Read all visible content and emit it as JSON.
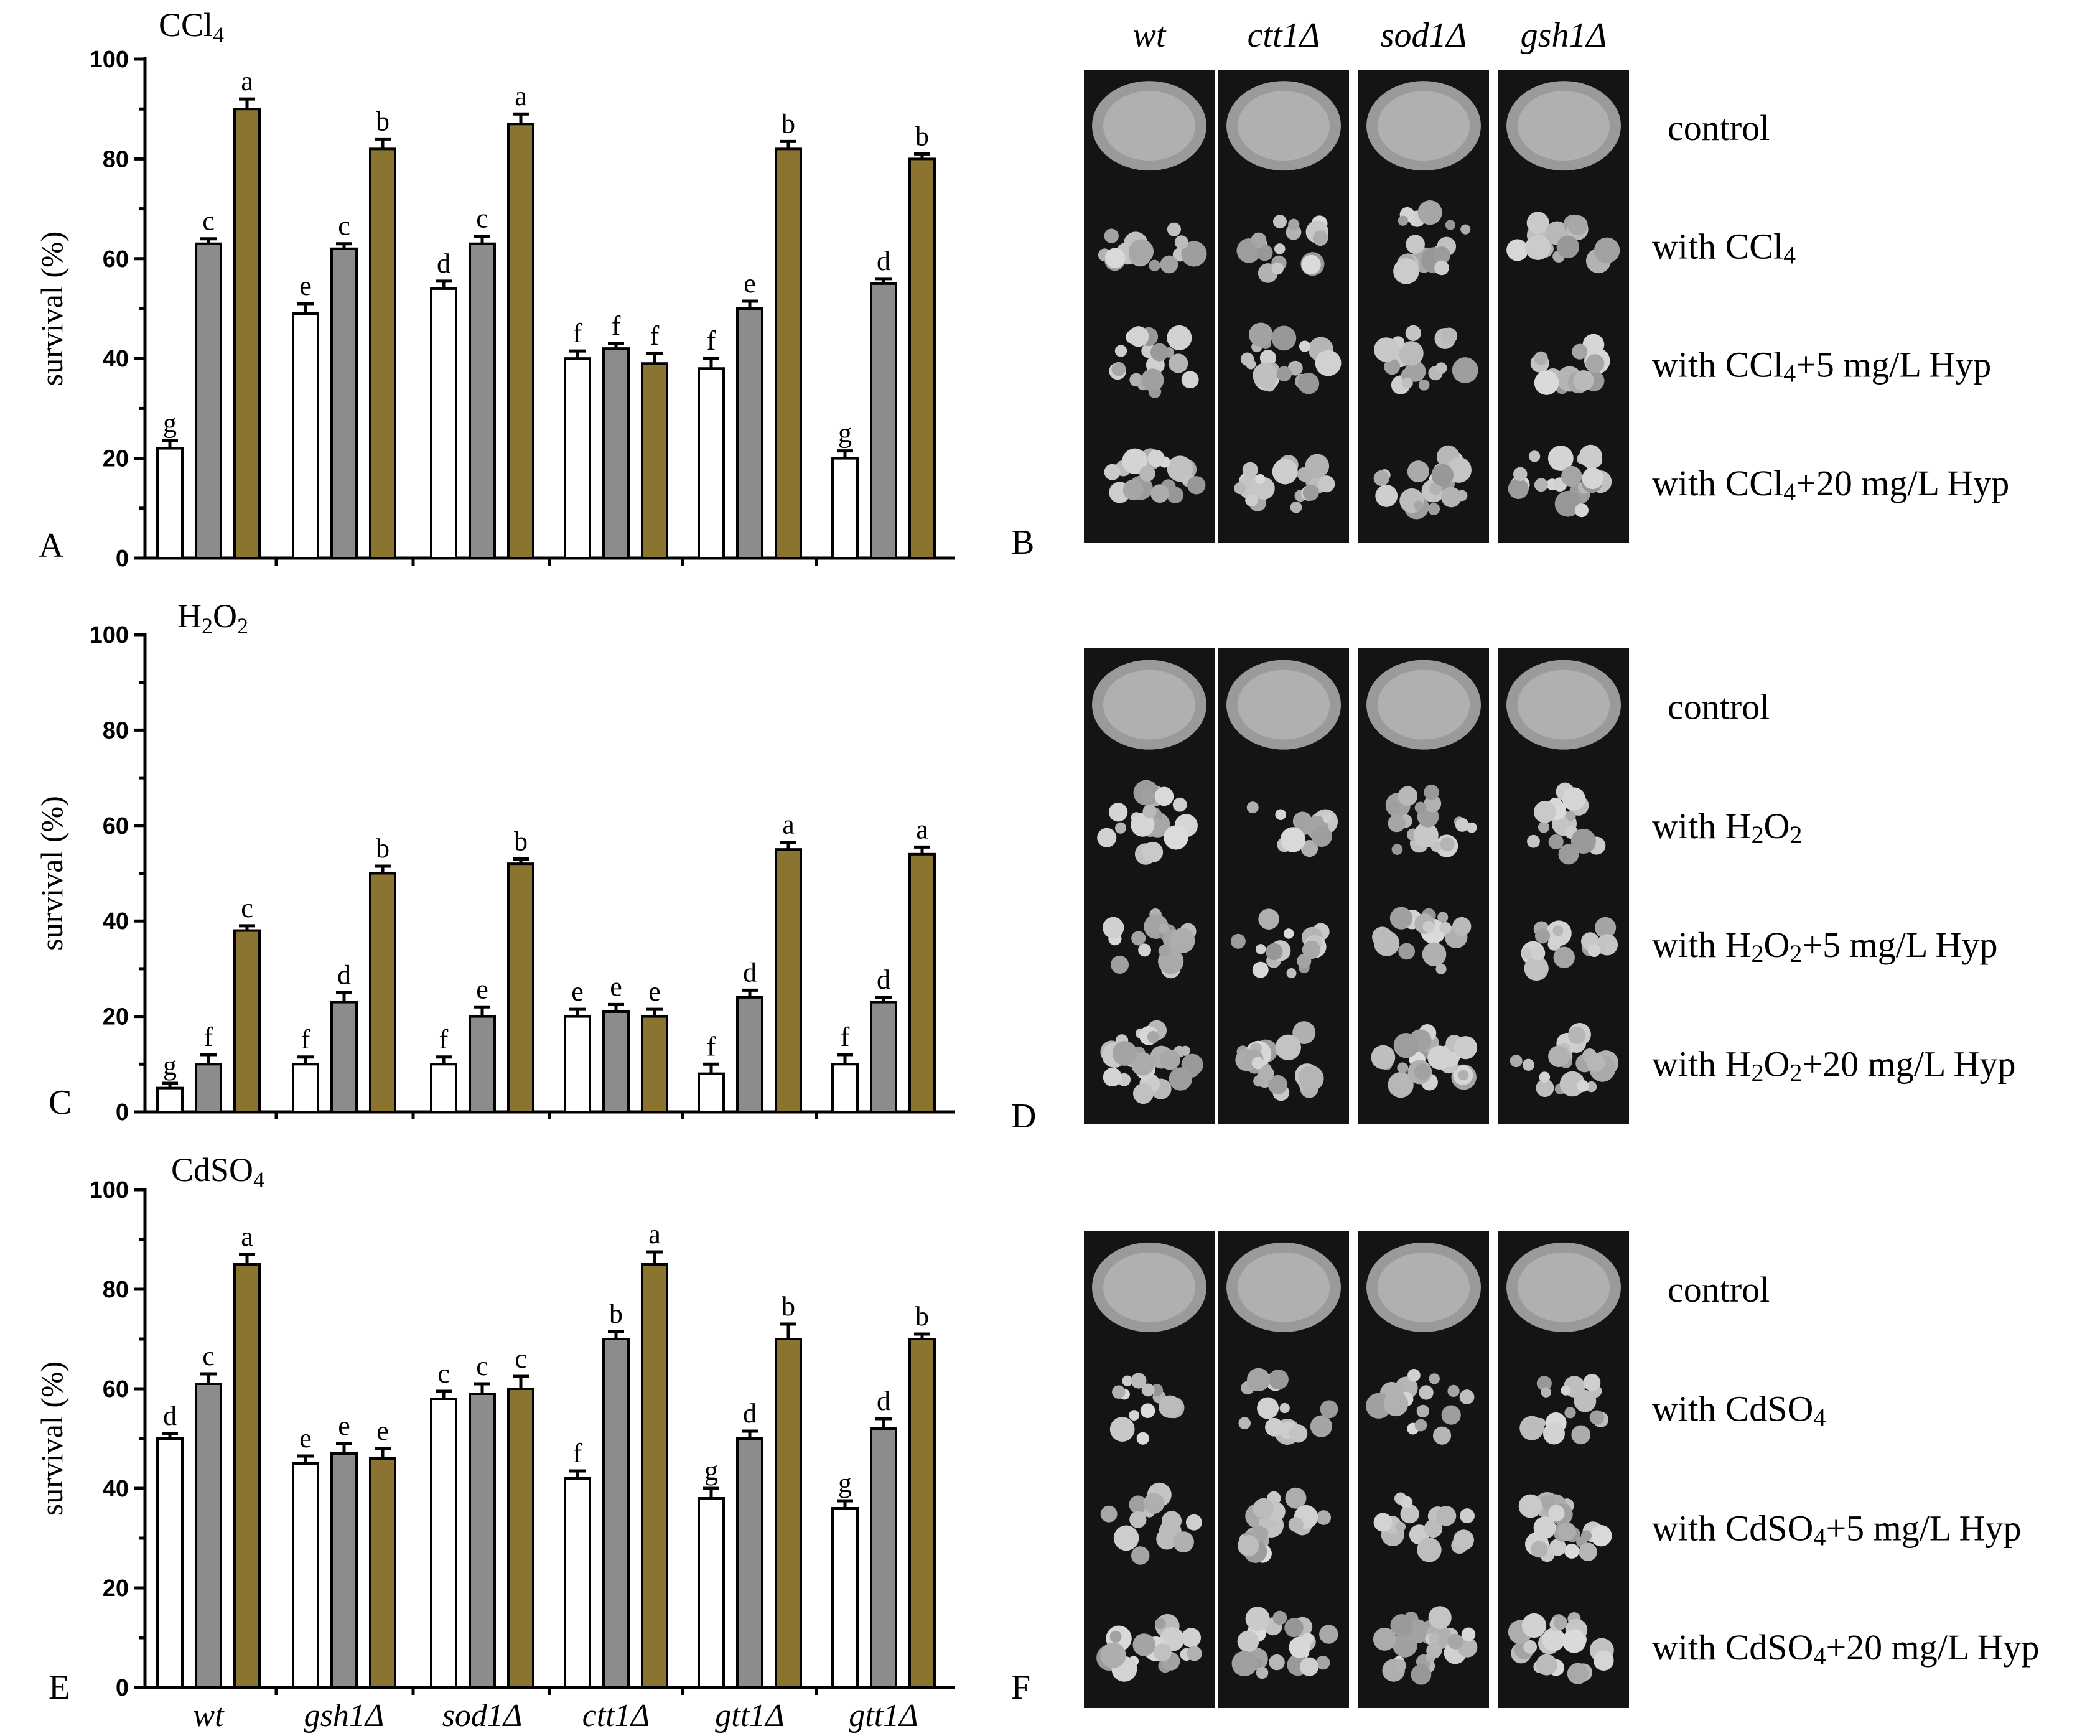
{
  "chart_data": [
    {
      "type": "bar",
      "panel_letter": "A",
      "title_text": "CCl",
      "title_sub": "4",
      "ylabel": "survival (%)",
      "ylim": [
        0,
        100
      ],
      "yticks": [
        0,
        20,
        40,
        60,
        80,
        100
      ],
      "categories": [
        "",
        "",
        "",
        "",
        "",
        ""
      ],
      "series": [
        {
          "color": "#ffffff",
          "values": [
            22,
            49,
            54,
            40,
            38,
            20
          ],
          "errors": [
            1.5,
            2,
            1.5,
            1.5,
            2,
            1.5
          ],
          "letters": [
            "g",
            "e",
            "d",
            "f",
            "f",
            "g"
          ]
        },
        {
          "color": "#8c8c8c",
          "values": [
            63,
            62,
            63,
            42,
            50,
            55
          ],
          "errors": [
            1,
            1,
            1.5,
            1,
            1.5,
            1
          ],
          "letters": [
            "c",
            "c",
            "c",
            "f",
            "e",
            "d"
          ]
        },
        {
          "color": "#8b7430",
          "values": [
            90,
            82,
            87,
            39,
            82,
            80
          ],
          "errors": [
            2,
            2,
            2,
            2,
            1.5,
            1
          ],
          "letters": [
            "a",
            "b",
            "a",
            "f",
            "b",
            "b"
          ]
        }
      ]
    },
    {
      "type": "bar",
      "panel_letter": "C",
      "title_text": "H",
      "title_sub": "2",
      "title_text2": "O",
      "title_sub2": "2",
      "ylabel": "survival  (%)",
      "ylim": [
        0,
        100
      ],
      "yticks": [
        0,
        20,
        40,
        60,
        80,
        100
      ],
      "categories": [
        "",
        "",
        "",
        "",
        "",
        ""
      ],
      "series": [
        {
          "color": "#ffffff",
          "values": [
            5,
            10,
            10,
            20,
            8,
            10
          ],
          "errors": [
            1,
            1.5,
            1.5,
            1.5,
            2,
            2
          ],
          "letters": [
            "g",
            "f",
            "f",
            "e",
            "f",
            "f"
          ]
        },
        {
          "color": "#8c8c8c",
          "values": [
            10,
            23,
            20,
            21,
            24,
            23
          ],
          "errors": [
            2,
            2,
            2,
            1.5,
            1.5,
            1
          ],
          "letters": [
            "f",
            "d",
            "e",
            "e",
            "d",
            "d"
          ]
        },
        {
          "color": "#8b7430",
          "values": [
            38,
            50,
            52,
            20,
            55,
            54
          ],
          "errors": [
            1,
            1.5,
            1,
            1.5,
            1.5,
            1.5
          ],
          "letters": [
            "c",
            "b",
            "b",
            "e",
            "a",
            "a"
          ]
        }
      ]
    },
    {
      "type": "bar",
      "panel_letter": "E",
      "title_text": "CdSO",
      "title_sub": "4",
      "ylabel": "survival (%)",
      "ylim": [
        0,
        100
      ],
      "yticks": [
        0,
        20,
        40,
        60,
        80,
        100
      ],
      "categories": [
        "wt",
        "gsh1Δ",
        "sod1Δ",
        "ctt1Δ",
        "gtt1Δ",
        "gtt1Δ"
      ],
      "series": [
        {
          "color": "#ffffff",
          "values": [
            50,
            45,
            58,
            42,
            38,
            36
          ],
          "errors": [
            1,
            1.5,
            1.5,
            1.5,
            2,
            1.5
          ],
          "letters": [
            "d",
            "e",
            "c",
            "f",
            "g",
            "g"
          ]
        },
        {
          "color": "#8c8c8c",
          "values": [
            61,
            47,
            59,
            70,
            50,
            52
          ],
          "errors": [
            2,
            2,
            2,
            1.5,
            1.5,
            2
          ],
          "letters": [
            "c",
            "e",
            "c",
            "b",
            "d",
            "d"
          ]
        },
        {
          "color": "#8b7430",
          "values": [
            85,
            46,
            60,
            85,
            70,
            70
          ],
          "errors": [
            2,
            2,
            2.5,
            2.5,
            3,
            1
          ],
          "letters": [
            "a",
            "e",
            "c",
            "a",
            "b",
            "b"
          ]
        }
      ]
    }
  ],
  "plates": {
    "strains": [
      "wt",
      "ctt1Δ",
      "sod1Δ",
      "gsh1Δ"
    ],
    "panels": [
      {
        "letter": "B",
        "conditions": [
          {
            "pre": "control",
            "sub": "",
            "post": ""
          },
          {
            "pre": "with CCl",
            "sub": "4",
            "post": ""
          },
          {
            "pre": "with CCl",
            "sub": "4",
            "post": "+5 mg/L Hyp"
          },
          {
            "pre": "with CCl",
            "sub": "4",
            "post": "+20 mg/L Hyp"
          }
        ]
      },
      {
        "letter": "D",
        "conditions": [
          {
            "pre": "control",
            "sub": "",
            "post": ""
          },
          {
            "pre": "with H",
            "sub": "2",
            "post": "O",
            "sub2": "2",
            "post2": ""
          },
          {
            "pre": "with H",
            "sub": "2",
            "post": "O",
            "sub2": "2",
            "post2": "+5 mg/L Hyp"
          },
          {
            "pre": "with H",
            "sub": "2",
            "post": "O",
            "sub2": "2",
            "post2": "+20 mg/L Hyp"
          }
        ]
      },
      {
        "letter": "F",
        "conditions": [
          {
            "pre": "control",
            "sub": "",
            "post": ""
          },
          {
            "pre": "with CdSO",
            "sub": "4",
            "post": ""
          },
          {
            "pre": "with CdSO",
            "sub": "4",
            "post": "+5 mg/L Hyp"
          },
          {
            "pre": "with CdSO",
            "sub": "4",
            "post": "+20 mg/L Hyp"
          }
        ]
      }
    ]
  }
}
